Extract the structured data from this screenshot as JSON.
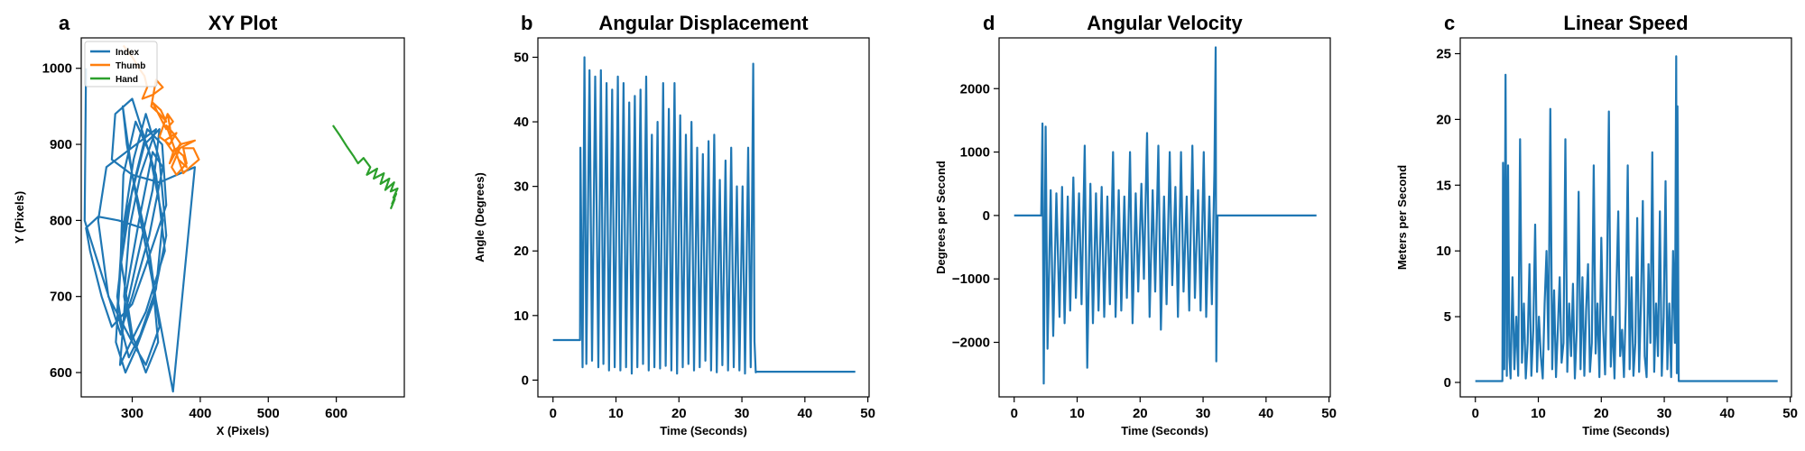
{
  "chart_data": [
    {
      "type": "line",
      "panel_letter": "a",
      "title": "XY Plot",
      "xlabel": "X (Pixels)",
      "ylabel": "Y (Pixels)",
      "xlim": [
        225,
        700
      ],
      "ylim": [
        568,
        1040
      ],
      "xticks": [
        300,
        400,
        500,
        600
      ],
      "yticks": [
        600,
        700,
        800,
        900,
        1000
      ],
      "grid": false,
      "legend": "top-left",
      "series": [
        {
          "name": "Index",
          "color": "#1f77b4",
          "x": [
            300,
            265,
            250,
            262,
            335,
            312,
            296,
            288,
            300,
            320,
            340,
            325,
            300,
            286,
            292,
            310,
            330,
            338,
            320,
            300,
            283,
            287,
            305,
            325,
            345,
            335,
            312,
            295,
            278,
            285,
            302,
            320,
            340,
            350,
            330,
            305,
            290,
            276,
            283,
            300,
            322,
            344,
            350,
            320,
            300,
            270,
            255,
            238,
            232,
            250,
            280,
            315,
            360,
            392,
            340,
            300,
            270,
            275,
            300,
            335,
            348,
            320,
            298,
            282,
            290,
            310,
            330,
            345,
            325,
            300,
            285,
            278,
            292,
            318,
            340,
            330,
            305,
            283,
            230,
            232
          ],
          "y": [
            640,
            700,
            800,
            870,
            920,
            860,
            790,
            700,
            640,
            610,
            660,
            760,
            860,
            950,
            900,
            810,
            720,
            640,
            600,
            650,
            750,
            860,
            930,
            890,
            800,
            710,
            650,
            620,
            680,
            780,
            880,
            940,
            880,
            780,
            690,
            630,
            600,
            640,
            740,
            840,
            920,
            900,
            820,
            740,
            690,
            660,
            700,
            760,
            790,
            805,
            800,
            790,
            575,
            870,
            850,
            860,
            880,
            940,
            960,
            860,
            760,
            680,
            640,
            610,
            700,
            800,
            890,
            870,
            780,
            700,
            660,
            700,
            810,
            900,
            920,
            840,
            740,
            650,
            800,
            1000
          ]
        },
        {
          "name": "Thumb",
          "color": "#ff7f0e",
          "x": [
            287,
            300,
            310,
            318,
            322,
            315,
            330,
            345,
            335,
            328,
            340,
            350,
            342,
            330,
            350,
            360,
            352,
            340,
            355,
            365,
            348,
            360,
            372,
            360,
            350,
            368,
            380,
            375,
            362,
            355,
            370,
            392,
            370,
            358,
            365,
            380,
            375,
            390,
            398,
            385,
            375,
            368,
            362,
            358,
            355,
            352
          ],
          "y": [
            1030,
            1015,
            1000,
            990,
            975,
            960,
            965,
            975,
            985,
            950,
            940,
            930,
            945,
            955,
            920,
            930,
            940,
            910,
            900,
            915,
            905,
            890,
            900,
            915,
            925,
            880,
            870,
            885,
            895,
            875,
            900,
            905,
            895,
            870,
            860,
            875,
            895,
            895,
            880,
            870,
            862,
            880,
            895,
            905,
            925,
            940
          ]
        },
        {
          "name": "Hand",
          "color": "#2ca02c",
          "x": [
            595,
            605,
            615,
            625,
            632,
            640,
            650,
            645,
            660,
            655,
            670,
            665,
            678,
            672,
            685,
            680,
            690,
            684,
            688,
            682,
            686,
            680
          ],
          "y": [
            925,
            912,
            898,
            885,
            875,
            882,
            870,
            860,
            868,
            855,
            862,
            848,
            855,
            840,
            850,
            838,
            842,
            830,
            835,
            822,
            828,
            815
          ]
        }
      ]
    },
    {
      "type": "line",
      "panel_letter": "b",
      "title": "Angular Displacement",
      "xlabel": "Time (Seconds)",
      "ylabel": "Angle (Degrees)",
      "xlim": [
        -2.4,
        50.2
      ],
      "ylim": [
        -2.6,
        53
      ],
      "xticks": [
        0,
        10,
        20,
        30,
        40,
        50
      ],
      "yticks": [
        0,
        10,
        20,
        30,
        40,
        50
      ],
      "grid": false,
      "series": [
        {
          "color": "#1f77b4",
          "x": [
            0,
            4.3,
            4.35,
            4.7,
            5.0,
            5.3,
            5.8,
            6.2,
            6.7,
            7.2,
            7.6,
            8.0,
            8.5,
            8.9,
            9.4,
            9.8,
            10.3,
            10.7,
            11.2,
            11.6,
            12.1,
            12.5,
            13.0,
            13.4,
            13.9,
            14.3,
            14.8,
            15.2,
            15.7,
            16.1,
            16.6,
            17.0,
            17.5,
            17.9,
            18.4,
            18.8,
            19.3,
            19.7,
            20.2,
            20.6,
            21.1,
            21.5,
            22.0,
            22.4,
            22.9,
            23.3,
            23.8,
            24.2,
            24.7,
            25.1,
            25.6,
            26.0,
            26.5,
            26.9,
            27.4,
            27.8,
            28.3,
            28.7,
            29.2,
            29.6,
            30.1,
            30.5,
            31.0,
            31.4,
            31.8,
            32.0,
            32.2,
            32.3,
            48
          ],
          "y": [
            6.2,
            6.2,
            36,
            2,
            50,
            2.5,
            48,
            3,
            47,
            2,
            48,
            2.5,
            46,
            1.5,
            45,
            2,
            47,
            1.5,
            46,
            2,
            43,
            1,
            44,
            2,
            45,
            2.5,
            47,
            1.5,
            38,
            2,
            40,
            1.8,
            46,
            2.2,
            42,
            1.5,
            46,
            1,
            41,
            2,
            38,
            2.5,
            40,
            1.5,
            36,
            2,
            35,
            3,
            37,
            1.5,
            38,
            1.2,
            31,
            2.3,
            34,
            1.5,
            36,
            2,
            30,
            1.5,
            30,
            1,
            36,
            2,
            49,
            6,
            1.2,
            1.3,
            1.3
          ]
        }
      ]
    },
    {
      "type": "line",
      "panel_letter": "d",
      "title": "Angular Velocity",
      "xlabel": "Time (Seconds)",
      "ylabel": "Degrees per Second",
      "xlim": [
        -2.4,
        50.2
      ],
      "ylim": [
        -2860,
        2800
      ],
      "xticks": [
        0,
        10,
        20,
        30,
        40,
        50
      ],
      "yticks": [
        -2000,
        -1000,
        0,
        1000,
        2000
      ],
      "grid": false,
      "series": [
        {
          "color": "#1f77b4",
          "x": [
            0,
            4.3,
            4.5,
            4.7,
            5.0,
            5.3,
            5.8,
            6.2,
            6.7,
            7.2,
            7.6,
            8.0,
            8.5,
            8.9,
            9.4,
            9.8,
            10.3,
            10.7,
            11.2,
            11.6,
            12.1,
            12.5,
            13.0,
            13.4,
            13.9,
            14.3,
            14.8,
            15.2,
            15.7,
            16.1,
            16.6,
            17.0,
            17.5,
            17.9,
            18.4,
            18.8,
            19.3,
            19.7,
            20.2,
            20.6,
            21.1,
            21.5,
            22.0,
            22.4,
            22.9,
            23.3,
            23.8,
            24.2,
            24.7,
            25.1,
            25.6,
            26.0,
            26.5,
            26.9,
            27.4,
            27.8,
            28.3,
            28.7,
            29.2,
            29.6,
            30.1,
            30.5,
            31.0,
            31.4,
            31.8,
            32.0,
            32.1,
            32.3,
            48
          ],
          "y": [
            0,
            0,
            1450,
            -2650,
            1400,
            -2100,
            400,
            -1900,
            350,
            -1600,
            450,
            -1700,
            300,
            -1500,
            600,
            -1300,
            350,
            -1400,
            1100,
            -2400,
            500,
            -1700,
            350,
            -1500,
            450,
            -1600,
            300,
            -1400,
            1000,
            -1600,
            400,
            -1500,
            300,
            -1300,
            1000,
            -1700,
            350,
            -1200,
            500,
            -1000,
            1300,
            -1600,
            400,
            -1200,
            1100,
            -1800,
            300,
            -1400,
            1000,
            -1100,
            450,
            -1600,
            1000,
            -1200,
            300,
            -1500,
            1100,
            -1300,
            400,
            -1500,
            1000,
            -1600,
            300,
            -1400,
            700,
            2650,
            -2300,
            0,
            0
          ]
        }
      ]
    },
    {
      "type": "line",
      "panel_letter": "c",
      "title": "Linear Speed",
      "xlabel": "Time (Seconds)",
      "ylabel": "Meters per Second",
      "xlim": [
        -2.4,
        50.2
      ],
      "ylim": [
        -1.1,
        26.2
      ],
      "xticks": [
        0,
        10,
        20,
        30,
        40,
        50
      ],
      "yticks": [
        0,
        5,
        10,
        15,
        20,
        25
      ],
      "grid": false,
      "series": [
        {
          "color": "#1f77b4",
          "x": [
            0,
            4.3,
            4.4,
            4.6,
            4.8,
            5.0,
            5.2,
            5.4,
            5.6,
            5.9,
            6.2,
            6.5,
            6.8,
            7.1,
            7.4,
            7.7,
            8.0,
            8.3,
            8.6,
            8.9,
            9.2,
            9.5,
            9.8,
            10.1,
            10.4,
            10.7,
            11.0,
            11.3,
            11.6,
            11.9,
            12.2,
            12.5,
            12.8,
            13.1,
            13.4,
            13.7,
            14.0,
            14.3,
            14.6,
            14.9,
            15.2,
            15.5,
            15.8,
            16.1,
            16.4,
            16.7,
            17.0,
            17.3,
            17.6,
            17.9,
            18.2,
            18.5,
            18.8,
            19.1,
            19.4,
            19.7,
            20.0,
            20.3,
            20.6,
            20.9,
            21.2,
            21.5,
            21.8,
            22.1,
            22.4,
            22.7,
            23.0,
            23.3,
            23.6,
            23.9,
            24.2,
            24.5,
            24.8,
            25.1,
            25.4,
            25.7,
            26.0,
            26.3,
            26.6,
            26.9,
            27.2,
            27.5,
            27.8,
            28.1,
            28.4,
            28.7,
            29.0,
            29.3,
            29.6,
            29.9,
            30.2,
            30.5,
            30.8,
            31.1,
            31.4,
            31.7,
            31.9,
            32.0,
            32.1,
            32.3,
            48
          ],
          "y": [
            0.1,
            0.1,
            16.7,
            1,
            23.4,
            0.5,
            16.5,
            2,
            0.3,
            8,
            1,
            5,
            0.5,
            18.5,
            1.5,
            6,
            0.3,
            3,
            9,
            0.5,
            4,
            12,
            0.8,
            5,
            2,
            0.3,
            6,
            10,
            2.5,
            20.8,
            1,
            7,
            0.4,
            4,
            8,
            1.5,
            3,
            18.5,
            0.8,
            6,
            2,
            7.5,
            0.3,
            4,
            14.5,
            1,
            8,
            0.5,
            5.5,
            9,
            0.8,
            3,
            16.5,
            2.2,
            6,
            0.4,
            11,
            4,
            0.6,
            8,
            20.6,
            1.2,
            5,
            0.3,
            7,
            13,
            2,
            4,
            0.4,
            6,
            16.5,
            1,
            8,
            0.5,
            3,
            12.5,
            0.8,
            6,
            13.8,
            2,
            0.4,
            9,
            3,
            17.5,
            0.8,
            6,
            2,
            13,
            0.5,
            5,
            15.3,
            1,
            6,
            0.4,
            10,
            3,
            24.8,
            0.7,
            21,
            0.1,
            0.1
          ]
        }
      ]
    }
  ]
}
